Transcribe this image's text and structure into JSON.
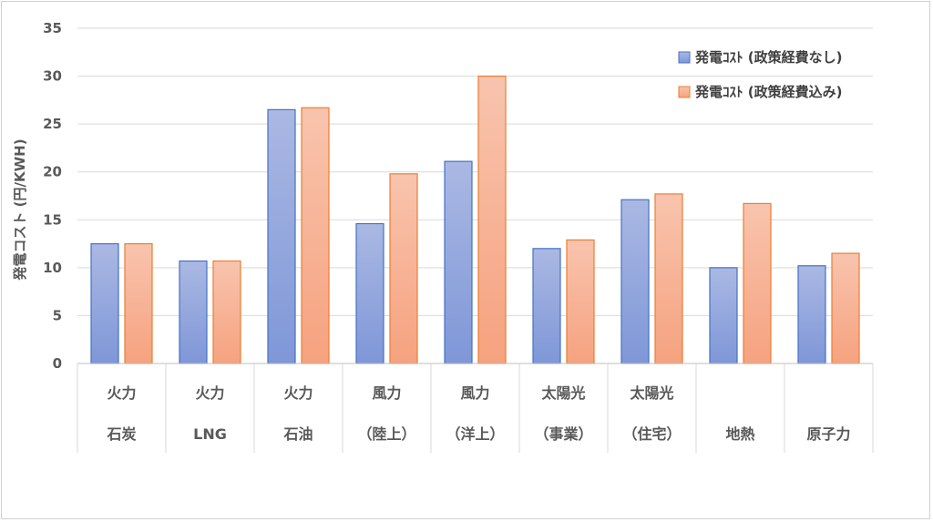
{
  "chart_data": {
    "type": "bar",
    "ylabel": "発電コスト (円/KWH)",
    "ylim": [
      0,
      35
    ],
    "yticks": [
      0,
      5,
      10,
      15,
      20,
      25,
      30,
      35
    ],
    "grid": true,
    "legend_position": "top-right",
    "categories": [
      [
        "火力",
        "石炭"
      ],
      [
        "火力",
        "LNG"
      ],
      [
        "火力",
        "石油"
      ],
      [
        "風力",
        "（陸上）"
      ],
      [
        "風力",
        "（洋上）"
      ],
      [
        "太陽光",
        "（事業）"
      ],
      [
        "太陽光",
        "（住宅）"
      ],
      [
        "",
        "地熱"
      ],
      [
        "",
        "原子力"
      ]
    ],
    "series": [
      {
        "name": "発電ｺｽﾄ (政策経費なし)",
        "color_top": "#aab8e3",
        "color_bottom": "#7f97d8",
        "border": "#4472c4",
        "values": [
          12.5,
          10.7,
          26.5,
          14.6,
          21.1,
          12.0,
          17.1,
          10.0,
          10.2
        ]
      },
      {
        "name": "発電ｺｽﾄ (政策経費込み)",
        "color_top": "#f8c4ae",
        "color_bottom": "#f6a27f",
        "border": "#ed7d31",
        "values": [
          12.5,
          10.7,
          26.7,
          19.8,
          30.0,
          12.9,
          17.7,
          16.7,
          11.5
        ]
      }
    ]
  }
}
